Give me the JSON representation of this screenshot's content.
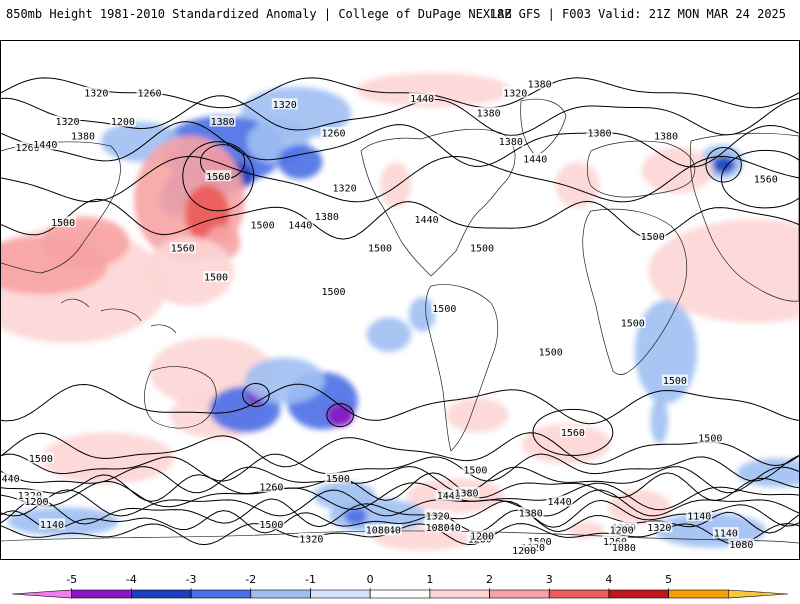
{
  "header": {
    "title": "850mb Height 1981-2010 Standardized Anomaly | College of DuPage NEXLAB",
    "run_info": "18Z GFS | F003 Valid: 21Z MON MAR 24 2025"
  },
  "colorbar": {
    "labels": [
      "-5",
      "-4",
      "-3",
      "-2",
      "-1",
      "0",
      "1",
      "2",
      "3",
      "4",
      "5"
    ],
    "colors": [
      "#f27bf2",
      "#8a16c4",
      "#1c3fbd",
      "#4a6ee6",
      "#9fbff2",
      "#d2e3fb",
      "#ffffff",
      "#fdd5d5",
      "#f7a3a3",
      "#ec5a5a",
      "#c2161f",
      "#f3a000",
      "#f6c640"
    ]
  },
  "contour_labels": [
    {
      "text": "1440",
      "lon": -170,
      "lat": 70
    },
    {
      "text": "1380",
      "lon": -117,
      "lat": 75
    },
    {
      "text": "1320",
      "lon": 128,
      "lat": 68
    },
    {
      "text": "1380",
      "lon": 100,
      "lat": 62
    },
    {
      "text": "1260",
      "lon": 150,
      "lat": 58
    },
    {
      "text": "1320",
      "lon": -128,
      "lat": 72
    },
    {
      "text": "1320",
      "lon": 43,
      "lat": 72
    },
    {
      "text": "1260",
      "lon": 67,
      "lat": 72
    },
    {
      "text": "1200",
      "lon": 55,
      "lat": 62
    },
    {
      "text": "1320",
      "lon": 30,
      "lat": 62
    },
    {
      "text": "1380",
      "lon": -140,
      "lat": 65
    },
    {
      "text": "1380",
      "lon": -130,
      "lat": 55
    },
    {
      "text": "1380",
      "lon": -90,
      "lat": 58
    },
    {
      "text": "1380",
      "lon": -60,
      "lat": 57
    },
    {
      "text": "1260",
      "lon": 12,
      "lat": 53
    },
    {
      "text": "1380",
      "lon": 37,
      "lat": 57
    },
    {
      "text": "1440",
      "lon": 20,
      "lat": 54
    },
    {
      "text": "1320",
      "lon": 155,
      "lat": 39
    },
    {
      "text": "1380",
      "lon": 147,
      "lat": 29
    },
    {
      "text": "1500",
      "lon": 118,
      "lat": 26
    },
    {
      "text": "1440",
      "lon": 135,
      "lat": 26
    },
    {
      "text": "1500",
      "lon": 171,
      "lat": 18
    },
    {
      "text": "1440",
      "lon": -168,
      "lat": 28
    },
    {
      "text": "1500",
      "lon": -143,
      "lat": 18
    },
    {
      "text": "1440",
      "lon": -119,
      "lat": 49
    },
    {
      "text": "1500",
      "lon": -66,
      "lat": 22
    },
    {
      "text": "1560",
      "lon": -15,
      "lat": 42
    },
    {
      "text": "1500",
      "lon": 28,
      "lat": 27
    },
    {
      "text": "1560",
      "lon": 98,
      "lat": 43
    },
    {
      "text": "1560",
      "lon": 82,
      "lat": 18
    },
    {
      "text": "1500",
      "lon": 97,
      "lat": 8
    },
    {
      "text": "1500",
      "lon": -160,
      "lat": -3
    },
    {
      "text": "1500",
      "lon": -112,
      "lat": -18
    },
    {
      "text": "1500",
      "lon": -75,
      "lat": -8
    },
    {
      "text": "1500",
      "lon": -56,
      "lat": -28
    },
    {
      "text": "1500",
      "lon": 150,
      "lat": 3
    },
    {
      "text": "1500",
      "lon": -40,
      "lat": -48
    },
    {
      "text": "1500",
      "lon": 152,
      "lat": -62
    },
    {
      "text": "1500",
      "lon": 122,
      "lat": -78
    },
    {
      "text": "1500",
      "lon": -146,
      "lat": -59
    },
    {
      "text": "1560",
      "lon": -102,
      "lat": -46
    },
    {
      "text": "1500",
      "lon": -117,
      "lat": -84
    },
    {
      "text": "1500",
      "lon": 18,
      "lat": -55
    },
    {
      "text": "1440",
      "lon": 3,
      "lat": -62
    },
    {
      "text": "1440",
      "lon": -158,
      "lat": -68
    },
    {
      "text": "1440",
      "lon": -108,
      "lat": -70
    },
    {
      "text": "1380",
      "lon": -150,
      "lat": -67
    },
    {
      "text": "1380",
      "lon": -121,
      "lat": -74
    },
    {
      "text": "1380",
      "lon": -79,
      "lat": -79
    },
    {
      "text": "1320",
      "lon": -163,
      "lat": -75
    },
    {
      "text": "1320",
      "lon": -63,
      "lat": -79
    },
    {
      "text": "1320",
      "lon": 13,
      "lat": -68
    },
    {
      "text": "1320",
      "lon": 140,
      "lat": -83
    },
    {
      "text": "1320",
      "lon": -120,
      "lat": -86
    },
    {
      "text": "1260",
      "lon": 122,
      "lat": -65
    },
    {
      "text": "1260",
      "lon": -83,
      "lat": -84
    },
    {
      "text": "1260",
      "lon": -144,
      "lat": -83
    },
    {
      "text": "1200",
      "lon": -80,
      "lat": -80
    },
    {
      "text": "1200",
      "lon": -124,
      "lat": -87
    },
    {
      "text": "1200",
      "lon": 16,
      "lat": -70
    },
    {
      "text": "1200",
      "lon": -143,
      "lat": -82
    },
    {
      "text": "1140",
      "lon": 175,
      "lat": -80
    },
    {
      "text": "1140",
      "lon": -158,
      "lat": -79
    },
    {
      "text": "1140",
      "lon": -45,
      "lat": -75
    },
    {
      "text": "1140",
      "lon": -33,
      "lat": -81
    },
    {
      "text": "1140",
      "lon": 23,
      "lat": -78
    },
    {
      "text": "1080",
      "lon": 170,
      "lat": -80
    },
    {
      "text": "1080",
      "lon": -163,
      "lat": -79
    },
    {
      "text": "1080",
      "lon": -26,
      "lat": -85
    },
    {
      "text": "1080",
      "lon": -79,
      "lat": -86
    }
  ],
  "anomaly_blobs": [
    {
      "lon": -165,
      "lat": 73,
      "rx": 35,
      "ry": 6,
      "value": 1.4
    },
    {
      "lon": 133,
      "lat": 65,
      "rx": 25,
      "ry": 9,
      "value": -1.6
    },
    {
      "lon": 100,
      "lat": 52,
      "rx": 28,
      "ry": 12,
      "value": -2.3
    },
    {
      "lon": 98,
      "lat": 48,
      "rx": 7,
      "ry": 4,
      "value": -4.2
    },
    {
      "lon": 105,
      "lat": 43,
      "rx": 9,
      "ry": 5,
      "value": -3.2
    },
    {
      "lon": 90,
      "lat": 40,
      "rx": 16,
      "ry": 6,
      "value": -2.4
    },
    {
      "lon": 125,
      "lat": 55,
      "rx": 14,
      "ry": 8,
      "value": -1.6
    },
    {
      "lon": 135,
      "lat": 48,
      "rx": 10,
      "ry": 6,
      "value": -2.6
    },
    {
      "lon": 78,
      "lat": 35,
      "rx": 6,
      "ry": 6,
      "value": -2.5
    },
    {
      "lon": 63,
      "lat": 55,
      "rx": 18,
      "ry": 7,
      "value": -1.2
    },
    {
      "lon": -35,
      "lat": 48,
      "rx": 10,
      "ry": 6,
      "value": -1.8
    },
    {
      "lon": -34,
      "lat": 47,
      "rx": 5,
      "ry": 3,
      "value": -3.4
    },
    {
      "lon": -55,
      "lat": 45,
      "rx": 16,
      "ry": 8,
      "value": 1.2
    },
    {
      "lon": -100,
      "lat": 40,
      "rx": 10,
      "ry": 8,
      "value": 1.3
    },
    {
      "lon": -20,
      "lat": 10,
      "rx": 48,
      "ry": 18,
      "value": 1.6
    },
    {
      "lon": 30,
      "lat": 5,
      "rx": 45,
      "ry": 20,
      "value": 1.8
    },
    {
      "lon": 18,
      "lat": 12,
      "rx": 30,
      "ry": 10,
      "value": 2.5
    },
    {
      "lon": 38,
      "lat": 20,
      "rx": 20,
      "ry": 9,
      "value": 2.7
    },
    {
      "lon": 85,
      "lat": 35,
      "rx": 25,
      "ry": 22,
      "value": 2.0
    },
    {
      "lon": 93,
      "lat": 30,
      "rx": 10,
      "ry": 10,
      "value": 3.3
    },
    {
      "lon": 100,
      "lat": 20,
      "rx": 8,
      "ry": 6,
      "value": 2.7
    },
    {
      "lon": 95,
      "lat": -25,
      "rx": 28,
      "ry": 12,
      "value": 1.2
    },
    {
      "lon": 98,
      "lat": -40,
      "rx": 22,
      "ry": 8,
      "value": 1.0
    },
    {
      "lon": -60,
      "lat": -18,
      "rx": 14,
      "ry": 18,
      "value": -1.2
    },
    {
      "lon": 85,
      "lat": 10,
      "rx": 20,
      "ry": 12,
      "value": 1.6
    },
    {
      "lon": 145,
      "lat": -35,
      "rx": 16,
      "ry": 10,
      "value": -2.3
    },
    {
      "lon": 153,
      "lat": -40,
      "rx": 6,
      "ry": 4,
      "value": -4.1
    },
    {
      "lon": 110,
      "lat": -38,
      "rx": 16,
      "ry": 8,
      "value": -2.4
    },
    {
      "lon": 115,
      "lat": -33,
      "rx": 4,
      "ry": 3,
      "value": -4.3
    },
    {
      "lon": 128,
      "lat": -28,
      "rx": 18,
      "ry": 8,
      "value": -1.3
    },
    {
      "lon": 175,
      "lat": -12,
      "rx": 10,
      "ry": 6,
      "value": -1.1
    },
    {
      "lon": -145,
      "lat": -40,
      "rx": 14,
      "ry": 6,
      "value": 1.1
    },
    {
      "lon": -105,
      "lat": -50,
      "rx": 20,
      "ry": 7,
      "value": 1.5
    },
    {
      "lon": -155,
      "lat": -68,
      "rx": 22,
      "ry": 6,
      "value": 1.5
    },
    {
      "lon": -72,
      "lat": -72,
      "rx": 14,
      "ry": 6,
      "value": 1.4
    },
    {
      "lon": 48,
      "lat": -55,
      "rx": 30,
      "ry": 9,
      "value": 1.3
    },
    {
      "lon": 170,
      "lat": -75,
      "rx": 22,
      "ry": 6,
      "value": -1.4
    },
    {
      "lon": 160,
      "lat": -75,
      "rx": 5,
      "ry": 3,
      "value": -2.6
    },
    {
      "lon": -40,
      "lat": -80,
      "rx": 25,
      "ry": 6,
      "value": -1.2
    },
    {
      "lon": 28,
      "lat": -77,
      "rx": 25,
      "ry": 5,
      "value": -1.1
    },
    {
      "lon": -170,
      "lat": -83,
      "rx": 22,
      "ry": 4,
      "value": 1.2
    },
    {
      "lon": 155,
      "lat": -68,
      "rx": 14,
      "ry": 5,
      "value": -1.2
    },
    {
      "lon": -96,
      "lat": -80,
      "rx": 8,
      "ry": 3,
      "value": 1.2
    },
    {
      "lon": -10,
      "lat": -60,
      "rx": 18,
      "ry": 5,
      "value": -1.3
    },
    {
      "lon": -170,
      "lat": -5,
      "rx": 6,
      "ry": 6,
      "value": -1.2
    },
    {
      "lon": -63,
      "lat": -42,
      "rx": 4,
      "ry": 8,
      "value": -1.5
    },
    {
      "lon": 178,
      "lat": 40,
      "rx": 7,
      "ry": 8,
      "value": 1.3
    }
  ]
}
